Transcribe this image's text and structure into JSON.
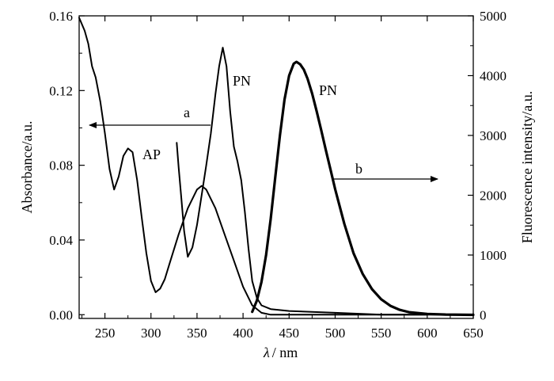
{
  "chart_data": {
    "type": "line",
    "xlabel_symbol": "λ",
    "xlabel_unit": "/ nm",
    "ylabel_left": "Absorbance/a.u.",
    "ylabel_right": "Fluorescence intensity/a.u.",
    "xlim": [
      222,
      650
    ],
    "ylim_left": [
      -0.002,
      0.16
    ],
    "ylim_right": [
      -60,
      5000
    ],
    "x_ticks": [
      "250",
      "300",
      "350",
      "400",
      "450",
      "500",
      "550",
      "600",
      "650"
    ],
    "y_left_ticks": [
      "0.00",
      "0.04",
      "0.08",
      "0.12",
      "0.16"
    ],
    "y_right_ticks": [
      "0",
      "1000",
      "2000",
      "3000",
      "4000",
      "5000"
    ],
    "grid": false,
    "series": [
      {
        "name": "AP",
        "axis": "left",
        "x": [
          222,
          228,
          232,
          236,
          240,
          245,
          250,
          255,
          260,
          265,
          270,
          275,
          280,
          285,
          290,
          295,
          300,
          305,
          310,
          315,
          320,
          330,
          340,
          350,
          355,
          360,
          370,
          380,
          390,
          400,
          410,
          420,
          430,
          440,
          450,
          460,
          470,
          480,
          490,
          500,
          550,
          600,
          650
        ],
        "y": [
          0.159,
          0.152,
          0.145,
          0.133,
          0.127,
          0.114,
          0.097,
          0.078,
          0.067,
          0.074,
          0.085,
          0.089,
          0.087,
          0.072,
          0.052,
          0.033,
          0.018,
          0.012,
          0.014,
          0.019,
          0.027,
          0.043,
          0.057,
          0.067,
          0.069,
          0.067,
          0.057,
          0.043,
          0.029,
          0.015,
          0.005,
          0.001,
          0.0,
          0.0,
          0.0,
          0.0,
          0.0,
          0.0,
          0.0,
          0.0,
          0.0,
          0.0,
          0.0
        ]
      },
      {
        "name": "PN",
        "axis": "left",
        "x": [
          328,
          330,
          333,
          336,
          340,
          345,
          350,
          355,
          360,
          365,
          370,
          374,
          378,
          382,
          386,
          390,
          394,
          398,
          402,
          406,
          410,
          415,
          420,
          430,
          450,
          500,
          550,
          600
        ],
        "y": [
          0.092,
          0.079,
          0.062,
          0.045,
          0.031,
          0.036,
          0.048,
          0.064,
          0.08,
          0.097,
          0.118,
          0.133,
          0.143,
          0.133,
          0.109,
          0.09,
          0.082,
          0.072,
          0.055,
          0.035,
          0.018,
          0.009,
          0.005,
          0.003,
          0.002,
          0.001,
          0.0,
          0.0
        ]
      },
      {
        "name": "PN",
        "axis": "right",
        "x": [
          410,
          415,
          420,
          425,
          430,
          435,
          440,
          445,
          450,
          455,
          458,
          462,
          466,
          470,
          475,
          480,
          485,
          490,
          495,
          500,
          510,
          520,
          530,
          540,
          550,
          560,
          570,
          580,
          600,
          620,
          650
        ],
        "y": [
          50,
          240,
          550,
          1000,
          1600,
          2300,
          3000,
          3600,
          4000,
          4200,
          4230,
          4190,
          4100,
          3950,
          3700,
          3400,
          3080,
          2750,
          2430,
          2100,
          1520,
          1030,
          680,
          430,
          260,
          150,
          85,
          45,
          15,
          5,
          0
        ]
      }
    ],
    "annotations": {
      "AP": "AP",
      "PN_abs": "PN",
      "PN_fl": "PN",
      "a": "a",
      "b": "b"
    }
  }
}
